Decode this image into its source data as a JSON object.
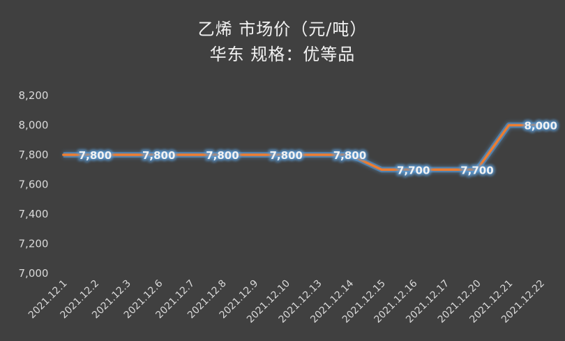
{
  "chart_data": {
    "type": "line",
    "title_line1": "乙烯  市场价（元/吨）",
    "title_line2": "华东      规格：优等品",
    "xlabel": "",
    "ylabel": "",
    "x": [
      "2021.12.1",
      "2021.12.2",
      "2021.12.3",
      "2021.12.6",
      "2021.12.7",
      "2021.12.8",
      "2021.12.9",
      "2021.12.10",
      "2021.12.13",
      "2021.12.14",
      "2021.12.15",
      "2021.12.16",
      "2021.12.17",
      "2021.12.20",
      "2021.12.21",
      "2021.12.22"
    ],
    "values": [
      7800,
      7800,
      7800,
      7800,
      7800,
      7800,
      7800,
      7800,
      7800,
      7800,
      7700,
      7700,
      7700,
      7700,
      8000,
      8000
    ],
    "data_labels": [
      {
        "index": 1,
        "text": "7,800"
      },
      {
        "index": 3,
        "text": "7,800"
      },
      {
        "index": 5,
        "text": "7,800"
      },
      {
        "index": 7,
        "text": "7,800"
      },
      {
        "index": 9,
        "text": "7,800"
      },
      {
        "index": 11,
        "text": "7,700"
      },
      {
        "index": 13,
        "text": "7,700"
      },
      {
        "index": 15,
        "text": "8,000"
      }
    ],
    "ylim": [
      7000,
      8200
    ],
    "yticks": [
      7000,
      7200,
      7400,
      7600,
      7800,
      8000,
      8200
    ],
    "ytick_labels": [
      "7,000",
      "7,200",
      "7,400",
      "7,600",
      "7,800",
      "8,000",
      "8,200"
    ],
    "grid": "vertical",
    "legend": "none",
    "colors": {
      "background": "#404040",
      "line": "#ed7d31",
      "text": "#f2f2f2",
      "tick_text": "#d9d9d9",
      "grid": "#5a5a5a",
      "glow": "#5b9bd5"
    }
  }
}
